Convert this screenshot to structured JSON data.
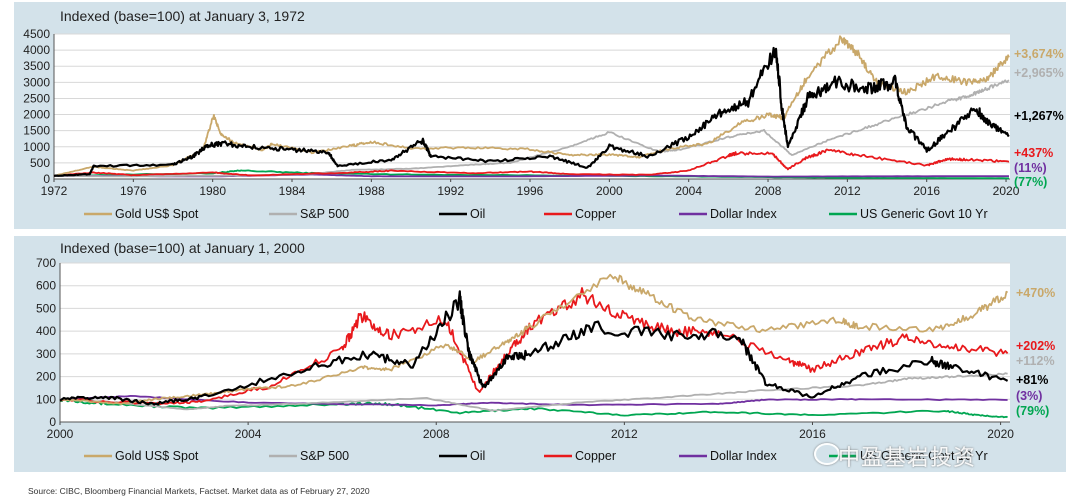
{
  "colors": {
    "gold": "#c9a86a",
    "sp500": "#b0b0b0",
    "oil": "#000000",
    "copper": "#e8191c",
    "dollar": "#7030a0",
    "tenyr": "#00a651"
  },
  "source": "Source: CIBC,  Bloomberg Financial Markets, Factset. Market data as of February 27, 2020",
  "watermark": "中盈基岩投资",
  "chart_data": [
    {
      "type": "line",
      "title": "Indexed (base=100) at January 3, 1972",
      "xlim": [
        1972,
        2020.2
      ],
      "ylim": [
        0,
        4500
      ],
      "x_ticks": [
        "1972",
        "1976",
        "1980",
        "1984",
        "1988",
        "1992",
        "1996",
        "2000",
        "2004",
        "2008",
        "2012",
        "2016",
        "2020"
      ],
      "y_ticks": [
        "0",
        "500",
        "1000",
        "1500",
        "2000",
        "2500",
        "3000",
        "3500",
        "4000",
        "4500"
      ],
      "grid": true,
      "legend": "bottom",
      "series": [
        {
          "name": "Gold US$ Spot",
          "key": "gold",
          "end_label": "+3,674%",
          "x": [
            1972,
            1974,
            1976,
            1978,
            1979.5,
            1980.05,
            1980.4,
            1981,
            1982.5,
            1983,
            1985,
            1987,
            1988,
            1990,
            1993,
            1996,
            1998,
            2000,
            2001.5,
            2003,
            2005,
            2006.5,
            2008,
            2008.8,
            2010,
            2011.7,
            2012.5,
            2013.5,
            2015,
            2016.5,
            2018,
            2019,
            2020.15
          ],
          "y": [
            100,
            380,
            260,
            430,
            900,
            1960,
            1420,
            1150,
            900,
            1080,
            820,
            1030,
            1150,
            950,
            970,
            920,
            740,
            760,
            680,
            940,
            1100,
            1700,
            2000,
            1900,
            3200,
            4350,
            3900,
            3000,
            2700,
            3200,
            3000,
            3100,
            3774
          ]
        },
        {
          "name": "S&P 500",
          "key": "sp500",
          "end_label": "+2,965%",
          "x": [
            1972,
            1975,
            1980,
            1982,
            1985,
            1987,
            1990,
            1993,
            1995,
            1998,
            2000,
            2002.5,
            2003.5,
            2006,
            2007.8,
            2009.2,
            2011,
            2013,
            2015,
            2017,
            2018,
            2019,
            2020.15
          ],
          "y": [
            100,
            80,
            100,
            110,
            160,
            280,
            320,
            440,
            500,
            1000,
            1450,
            850,
            900,
            1300,
            1500,
            740,
            1200,
            1600,
            2000,
            2400,
            2550,
            2800,
            3065
          ]
        },
        {
          "name": "Oil",
          "key": "oil",
          "end_label": "+1,267%",
          "x": [
            1972,
            1973.8,
            1974,
            1978,
            1979,
            1979.8,
            1980.5,
            1982,
            1984,
            1985.8,
            1986.3,
            1989,
            1990.6,
            1991,
            1994,
            1997,
            1998.9,
            2000,
            2002,
            2004,
            2005.5,
            2007,
            2008.4,
            2008.7,
            2009,
            2010,
            2011.3,
            2013,
            2014.4,
            2015,
            2016,
            2017,
            2018.5,
            2019,
            2020.15
          ],
          "y": [
            100,
            150,
            400,
            450,
            700,
            1050,
            1100,
            1000,
            900,
            850,
            400,
            600,
            1200,
            700,
            550,
            700,
            350,
            1000,
            700,
            1300,
            2000,
            2400,
            4100,
            2200,
            1000,
            2500,
            3000,
            2800,
            3000,
            1600,
            900,
            1400,
            2200,
            1800,
            1367
          ]
        },
        {
          "name": "Copper",
          "key": "copper",
          "end_label": "+437%",
          "x": [
            1972,
            1974,
            1976,
            1980,
            1982,
            1987,
            1989,
            1993,
            1996,
            1998,
            2002,
            2004,
            2006,
            2006.4,
            2008.2,
            2009,
            2010,
            2011.1,
            2013,
            2016,
            2017,
            2018,
            2020.15
          ],
          "y": [
            100,
            200,
            120,
            200,
            110,
            200,
            260,
            180,
            230,
            150,
            130,
            260,
            720,
            800,
            780,
            300,
            680,
            900,
            700,
            420,
            620,
            600,
            537
          ]
        },
        {
          "name": "Dollar Index",
          "key": "dollar",
          "end_label": "(11%)",
          "x": [
            1972,
            1980,
            1985,
            1988,
            1995,
            2002,
            2008,
            2014,
            2020.15
          ],
          "y": [
            100,
            80,
            140,
            85,
            80,
            110,
            75,
            85,
            89
          ]
        },
        {
          "name": "US Generic Govt 10 Yr",
          "key": "tenyr",
          "end_label": "(77%)",
          "x": [
            1972,
            1980,
            1981.5,
            1985,
            1990,
            2000,
            2008,
            2012,
            2016,
            2020.15
          ],
          "y": [
            100,
            180,
            260,
            180,
            140,
            100,
            60,
            35,
            30,
            23
          ]
        }
      ]
    },
    {
      "type": "line",
      "title": "Indexed (base=100) at January 1, 2000",
      "xlim": [
        2000,
        2020.2
      ],
      "ylim": [
        0,
        700
      ],
      "x_ticks": [
        "2000",
        "2004",
        "2008",
        "2012",
        "2016",
        "2020"
      ],
      "y_ticks": [
        "0",
        "100",
        "200",
        "300",
        "400",
        "500",
        "600",
        "700"
      ],
      "grid": true,
      "legend": "bottom",
      "series": [
        {
          "name": "Gold US$ Spot",
          "key": "gold",
          "end_label": "+470%",
          "x": [
            2000,
            2001.3,
            2002,
            2003,
            2004,
            2005,
            2006.4,
            2007,
            2008.2,
            2008.8,
            2009.5,
            2010,
            2011.7,
            2012.5,
            2013.5,
            2015,
            2016.5,
            2017,
            2018.7,
            2019.5,
            2020.15
          ],
          "y": [
            100,
            80,
            100,
            120,
            145,
            160,
            240,
            230,
            340,
            270,
            350,
            420,
            650,
            560,
            450,
            400,
            450,
            420,
            410,
            480,
            570
          ]
        },
        {
          "name": "S&P 500",
          "key": "sp500",
          "end_label": "+112%",
          "x": [
            2000,
            2001,
            2002.7,
            2003.5,
            2005,
            2007.8,
            2009.2,
            2011,
            2013,
            2015,
            2017,
            2018,
            2019,
            2020.15
          ],
          "y": [
            100,
            90,
            55,
            70,
            80,
            105,
            50,
            85,
            110,
            140,
            160,
            190,
            200,
            212
          ]
        },
        {
          "name": "Oil",
          "key": "oil",
          "end_label": "+81%",
          "x": [
            2000,
            2001,
            2002,
            2003,
            2005,
            2006.5,
            2007.5,
            2008.5,
            2008.7,
            2009,
            2009.5,
            2010,
            2011.3,
            2013,
            2014.4,
            2015,
            2016,
            2017,
            2018.5,
            2019,
            2020.15
          ],
          "y": [
            100,
            110,
            80,
            110,
            220,
            300,
            250,
            540,
            300,
            150,
            280,
            300,
            420,
            380,
            390,
            170,
            110,
            200,
            270,
            240,
            181
          ]
        },
        {
          "name": "Copper",
          "key": "copper",
          "end_label": "+202%",
          "x": [
            2000,
            2002,
            2003,
            2004.5,
            2006,
            2006.4,
            2007,
            2008.2,
            2008.9,
            2009.5,
            2010,
            2011.1,
            2012,
            2013,
            2014,
            2015.5,
            2016,
            2017,
            2018,
            2019,
            2020.15
          ],
          "y": [
            100,
            80,
            90,
            160,
            320,
            470,
            380,
            450,
            130,
            300,
            420,
            560,
            460,
            400,
            390,
            270,
            230,
            310,
            370,
            330,
            302
          ]
        },
        {
          "name": "Dollar Index",
          "key": "dollar",
          "end_label": "(3%)",
          "x": [
            2000,
            2001.5,
            2004,
            2008,
            2009,
            2011,
            2014,
            2015,
            2017,
            2020.15
          ],
          "y": [
            100,
            115,
            85,
            73,
            85,
            75,
            80,
            98,
            100,
            97
          ]
        },
        {
          "name": "US Generic Govt 10 Yr",
          "key": "tenyr",
          "end_label": "(79%)",
          "x": [
            2000,
            2001,
            2003,
            2006,
            2007,
            2008.5,
            2010,
            2012,
            2014,
            2016,
            2018.8,
            2019.5,
            2020.15
          ],
          "y": [
            100,
            80,
            60,
            80,
            80,
            40,
            60,
            30,
            45,
            30,
            50,
            30,
            21
          ]
        }
      ]
    }
  ]
}
